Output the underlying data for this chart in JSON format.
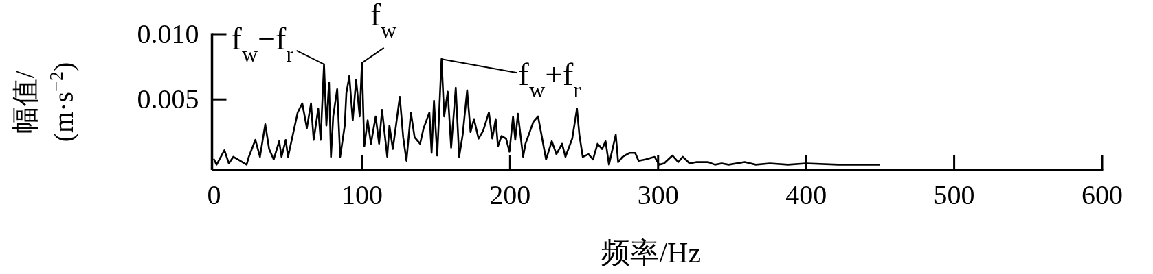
{
  "chart_data": {
    "type": "line",
    "xlabel": "频率/Hz",
    "ylabel": "幅值/\n(m·s$^{−2}$)",
    "xlim": [
      0,
      600
    ],
    "xticks": [
      0,
      100,
      200,
      300,
      400,
      500,
      600
    ],
    "ylim": [
      -0.0004,
      0.01
    ],
    "yticks": [
      0.005,
      {
        "value": 0.01,
        "label": "0.010"
      }
    ],
    "grid": false,
    "marker": "none",
    "line_style": "solid",
    "x": [
      0,
      1.7,
      7,
      10,
      13,
      17.6,
      22,
      23.5,
      27.9,
      31,
      34.6,
      37.2,
      40.3,
      44,
      45.6,
      48.4,
      50,
      54.2,
      56.5,
      59.6,
      62.7,
      65.5,
      67.3,
      70.4,
      72,
      74.3,
      75.9,
      77.7,
      79,
      80.5,
      83.2,
      85.2,
      88.3,
      89.4,
      91.4,
      93.7,
      96,
      98.4,
      99.9,
      101.5,
      103.8,
      106,
      109.2,
      111.5,
      113.5,
      117,
      118.5,
      120.8,
      125.5,
      127.8,
      130,
      133,
      135.5,
      139.2,
      141.6,
      145.5,
      147,
      148.6,
      150.8,
      153.7,
      155.5,
      157.9,
      160.2,
      163.3,
      165.6,
      168,
      171,
      173.3,
      175.6,
      178.7,
      181.8,
      185.7,
      188,
      190.3,
      191.8,
      194.2,
      197.3,
      199.6,
      202,
      203.5,
      205.3,
      208.8,
      210.4,
      215.8,
      218.9,
      221.2,
      224.3,
      228.2,
      231.3,
      235.1,
      237.4,
      242,
      245.2,
      246.8,
      249.1,
      253,
      256,
      259.1,
      262.2,
      264.5,
      266.8,
      271.4,
      273,
      276,
      280.7,
      284.5,
      286.8,
      291.5,
      297.6,
      300.7,
      304,
      309.7,
      313.6,
      316.7,
      321.3,
      326,
      333.7,
      338.4,
      343,
      347.7,
      358.5,
      366,
      375.5,
      387.8,
      400,
      421.6,
      438.6,
      449.4
    ],
    "series": [
      {
        "color": "#000000",
        "values": [
          0.0004,
          0,
          0.0011,
          0.0001,
          0.0006,
          0.0003,
          0,
          0.0006,
          0.0019,
          0.0006,
          0.0031,
          0.0012,
          0.0004,
          0.0018,
          0.0006,
          0.0019,
          0.0006,
          0.0028,
          0.004,
          0.0047,
          0.0028,
          0.0047,
          0.0019,
          0.0043,
          0.0019,
          0.0077,
          0.003,
          0.0063,
          0.0006,
          0.0037,
          0.0058,
          0.0006,
          0.003,
          0.0055,
          0.0068,
          0.0034,
          0.0065,
          0.0037,
          0.0078,
          0.0014,
          0.0034,
          0.0016,
          0.0037,
          0.0016,
          0.0042,
          0.0006,
          0.003,
          0.0012,
          0.0052,
          0.0021,
          0.0003,
          0.004,
          0.0021,
          0.0016,
          0.0028,
          0.004,
          0.0009,
          0.0049,
          0.0007,
          0.0081,
          0.0037,
          0.0056,
          0.0013,
          0.0059,
          0.0006,
          0.0023,
          0.0057,
          0.0025,
          0.0035,
          0.002,
          0.0026,
          0.004,
          0.002,
          0.0035,
          0.0014,
          0.0022,
          0.002,
          0.001,
          0.0037,
          0.0019,
          0.0039,
          0.0006,
          0.0016,
          0.0033,
          0.0037,
          0.0023,
          0.0004,
          0.0018,
          0.0008,
          0.0016,
          0.0006,
          0.002,
          0.0043,
          0.0023,
          0.0006,
          0.0008,
          0.0004,
          0.0016,
          0.0012,
          0.0018,
          0,
          0.0023,
          0.0002,
          0.0006,
          0.0009,
          0.0009,
          0.0003,
          0.0004,
          0.0006,
          0,
          0.0001,
          0.0007,
          0.0002,
          0.0006,
          0.0001,
          0.0002,
          0.0002,
          0,
          0.0001,
          0,
          0.0002,
          0,
          0.0001,
          0,
          0.0001,
          0,
          0,
          0
        ]
      }
    ],
    "annotations": [
      {
        "text": "f$_{w}$−f$_{r}$",
        "x": 74.3,
        "y": 0.0077
      },
      {
        "text": "f$_{w}$",
        "x": 99.9,
        "y": 0.0078
      },
      {
        "text": "f$_{w}$+f$_{r}$",
        "x": 153.7,
        "y": 0.0081
      }
    ]
  }
}
